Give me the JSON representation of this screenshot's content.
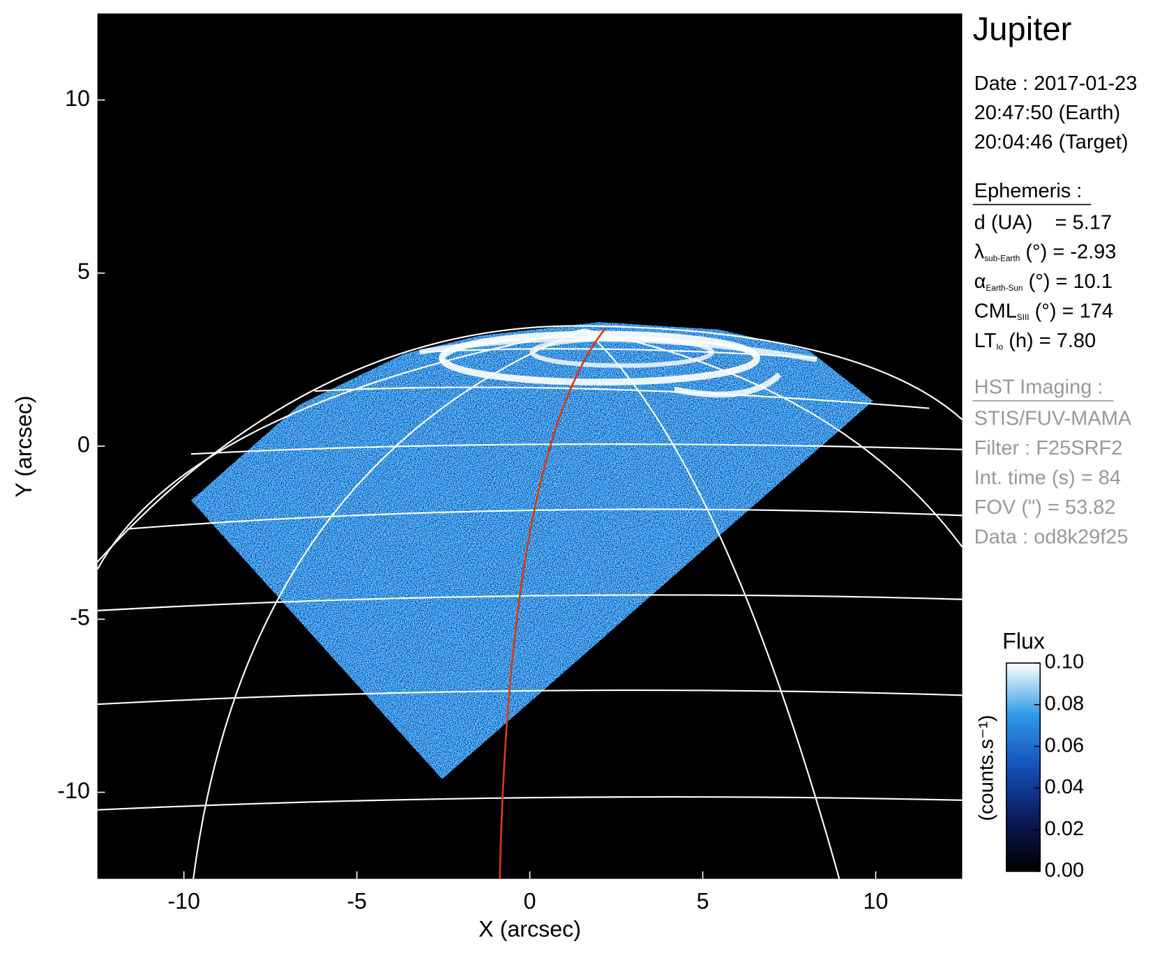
{
  "chart_data": {
    "type": "image",
    "xlabel": "X (arcsec)",
    "ylabel": "Y (arcsec)",
    "xlim": [
      -12.5,
      12.5
    ],
    "ylim": [
      -12.5,
      12.5
    ],
    "xticks": [
      -10,
      -5,
      0,
      5,
      10
    ],
    "yticks": [
      -10,
      -5,
      0,
      5,
      10
    ],
    "colorbar": {
      "title": "Flux",
      "label": "(counts.s⁻¹)",
      "lim": [
        0,
        0.1
      ],
      "ticks": [
        {
          "value": 0,
          "label": "0.00"
        },
        {
          "value": 0.02,
          "label": "0.02"
        },
        {
          "value": 0.04,
          "label": "0.04"
        },
        {
          "value": 0.06,
          "label": "0.06"
        },
        {
          "value": 0.08,
          "label": "0.08"
        },
        {
          "value": 0.1,
          "label": "0.10"
        }
      ]
    },
    "info_panel": {
      "title": "Jupiter",
      "date_lines": [
        "Date : 2017-01-23",
        "20:47:50 (Earth)",
        "20:04:46 (Target)"
      ],
      "ephemeris": {
        "heading": "Ephemeris :",
        "lines": [
          {
            "symbol": "d (UA)    = 5.17"
          },
          {
            "symbol": "λ",
            "sub": "sub-Earth",
            "rest": " (°) = -2.93"
          },
          {
            "symbol": "α",
            "sub": "Earth-Sun",
            "rest": " (°) = 10.1"
          },
          {
            "symbol": "CML",
            "sub": "SIII",
            "rest": " (°) = 174"
          },
          {
            "symbol": "LT",
            "sub": "Io",
            "rest": " (h) = 7.80"
          }
        ]
      },
      "imaging": {
        "heading": "HST Imaging :",
        "lines": [
          "STIS/FUV-MAMA",
          "Filter : F25SRF2",
          "Int. time (s) = 84",
          "FOV (\") = 53.82",
          "Data : od8k29f25"
        ]
      }
    }
  }
}
